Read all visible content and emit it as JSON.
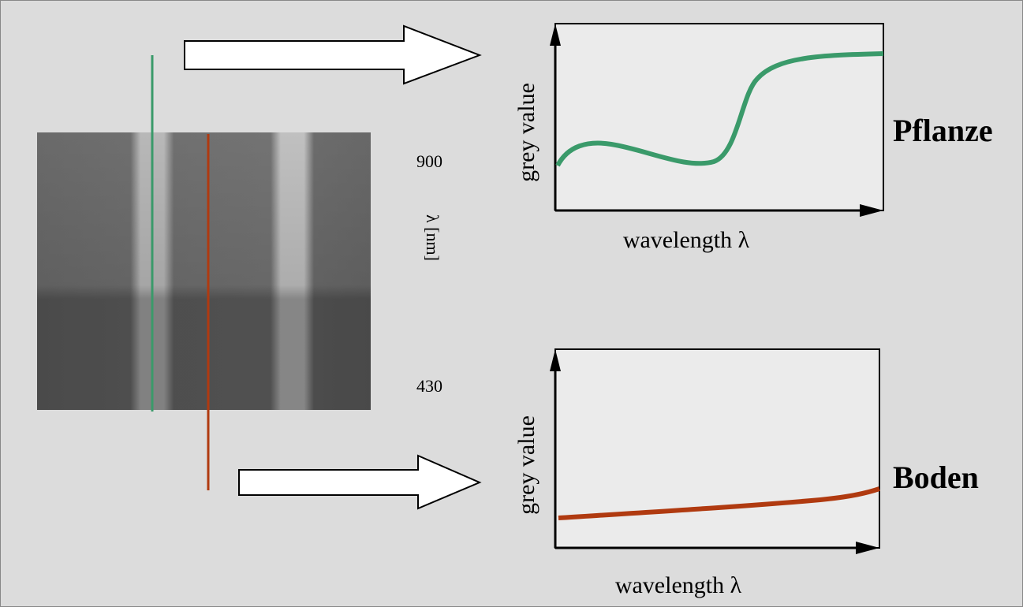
{
  "spectrum_image": {
    "scale_top": "900",
    "scale_bottom": "430",
    "axis_label": "λ [nm]"
  },
  "plots": [
    {
      "y_label": "grey value",
      "x_label": "wavelength λ",
      "name": "Pflanze"
    },
    {
      "y_label": "grey value",
      "x_label": "wavelength λ",
      "name": "Boden"
    }
  ]
}
